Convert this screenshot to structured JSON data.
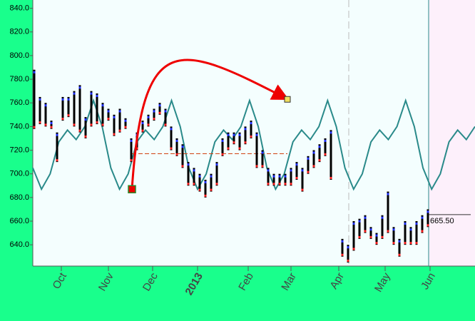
{
  "chart_data": {
    "type": "ohlc",
    "categories": [
      "Oct",
      "Nov",
      "Dec",
      "2013",
      "Feb",
      "Mar",
      "Apr",
      "May",
      "Jun"
    ],
    "ylim": [
      622,
      847
    ],
    "yticks": [
      {
        "value": 640,
        "label": "640.0"
      },
      {
        "value": 660,
        "label": "660.0"
      },
      {
        "value": 680,
        "label": "680.0"
      },
      {
        "value": 700,
        "label": "700.0"
      },
      {
        "value": 720,
        "label": "720.0"
      },
      {
        "value": 740,
        "label": "740.0"
      },
      {
        "value": 760,
        "label": "760.0"
      },
      {
        "value": 780,
        "label": "780.0"
      },
      {
        "value": 800,
        "label": "800.0"
      },
      {
        "value": 820,
        "label": "820.0"
      },
      {
        "value": 840,
        "label": "840.0"
      }
    ],
    "price": {
      "color": "#000000",
      "high": [
        788,
        765,
        760,
        745,
        735,
        765,
        765,
        770,
        775,
        748,
        770,
        768,
        760,
        755,
        750,
        755,
        747,
        730,
        735,
        745,
        750,
        755,
        760,
        755,
        740,
        730,
        725,
        710,
        705,
        700,
        695,
        700,
        710,
        730,
        735,
        735,
        735,
        740,
        745,
        735,
        720,
        705,
        700,
        700,
        700,
        705,
        710,
        705,
        715,
        720,
        725,
        730,
        737,
        null,
        645,
        640,
        660,
        662,
        665,
        655,
        650,
        665,
        685,
        655,
        645,
        660,
        655,
        660,
        665,
        670
      ],
      "low": [
        738,
        742,
        740,
        738,
        710,
        745,
        748,
        740,
        735,
        730,
        740,
        742,
        740,
        745,
        732,
        735,
        738,
        710,
        720,
        735,
        740,
        745,
        750,
        740,
        720,
        715,
        705,
        690,
        690,
        685,
        680,
        685,
        690,
        715,
        720,
        725,
        720,
        725,
        730,
        705,
        705,
        690,
        690,
        690,
        690,
        690,
        695,
        685,
        700,
        705,
        710,
        715,
        695,
        null,
        630,
        625,
        635,
        645,
        650,
        645,
        640,
        645,
        650,
        640,
        630,
        640,
        640,
        640,
        650,
        655
      ]
    },
    "cycle": {
      "color": "#2a8a8a",
      "values": [
        705,
        687,
        700,
        727,
        737,
        729,
        740,
        762,
        740,
        705,
        687,
        700,
        727,
        737,
        729,
        740,
        762,
        740,
        705,
        687,
        700,
        727,
        737,
        729,
        740,
        762,
        740,
        705,
        687,
        700,
        727,
        737,
        729,
        740,
        762,
        740,
        705,
        687,
        700,
        727,
        737,
        729,
        740,
        762,
        740,
        705,
        687,
        700,
        727,
        737,
        729,
        740
      ]
    },
    "last_price": {
      "value": 665.5,
      "label": "665.50"
    },
    "annotations": {
      "arrow_start": 687,
      "arrow_end": 763,
      "level": 717
    }
  }
}
